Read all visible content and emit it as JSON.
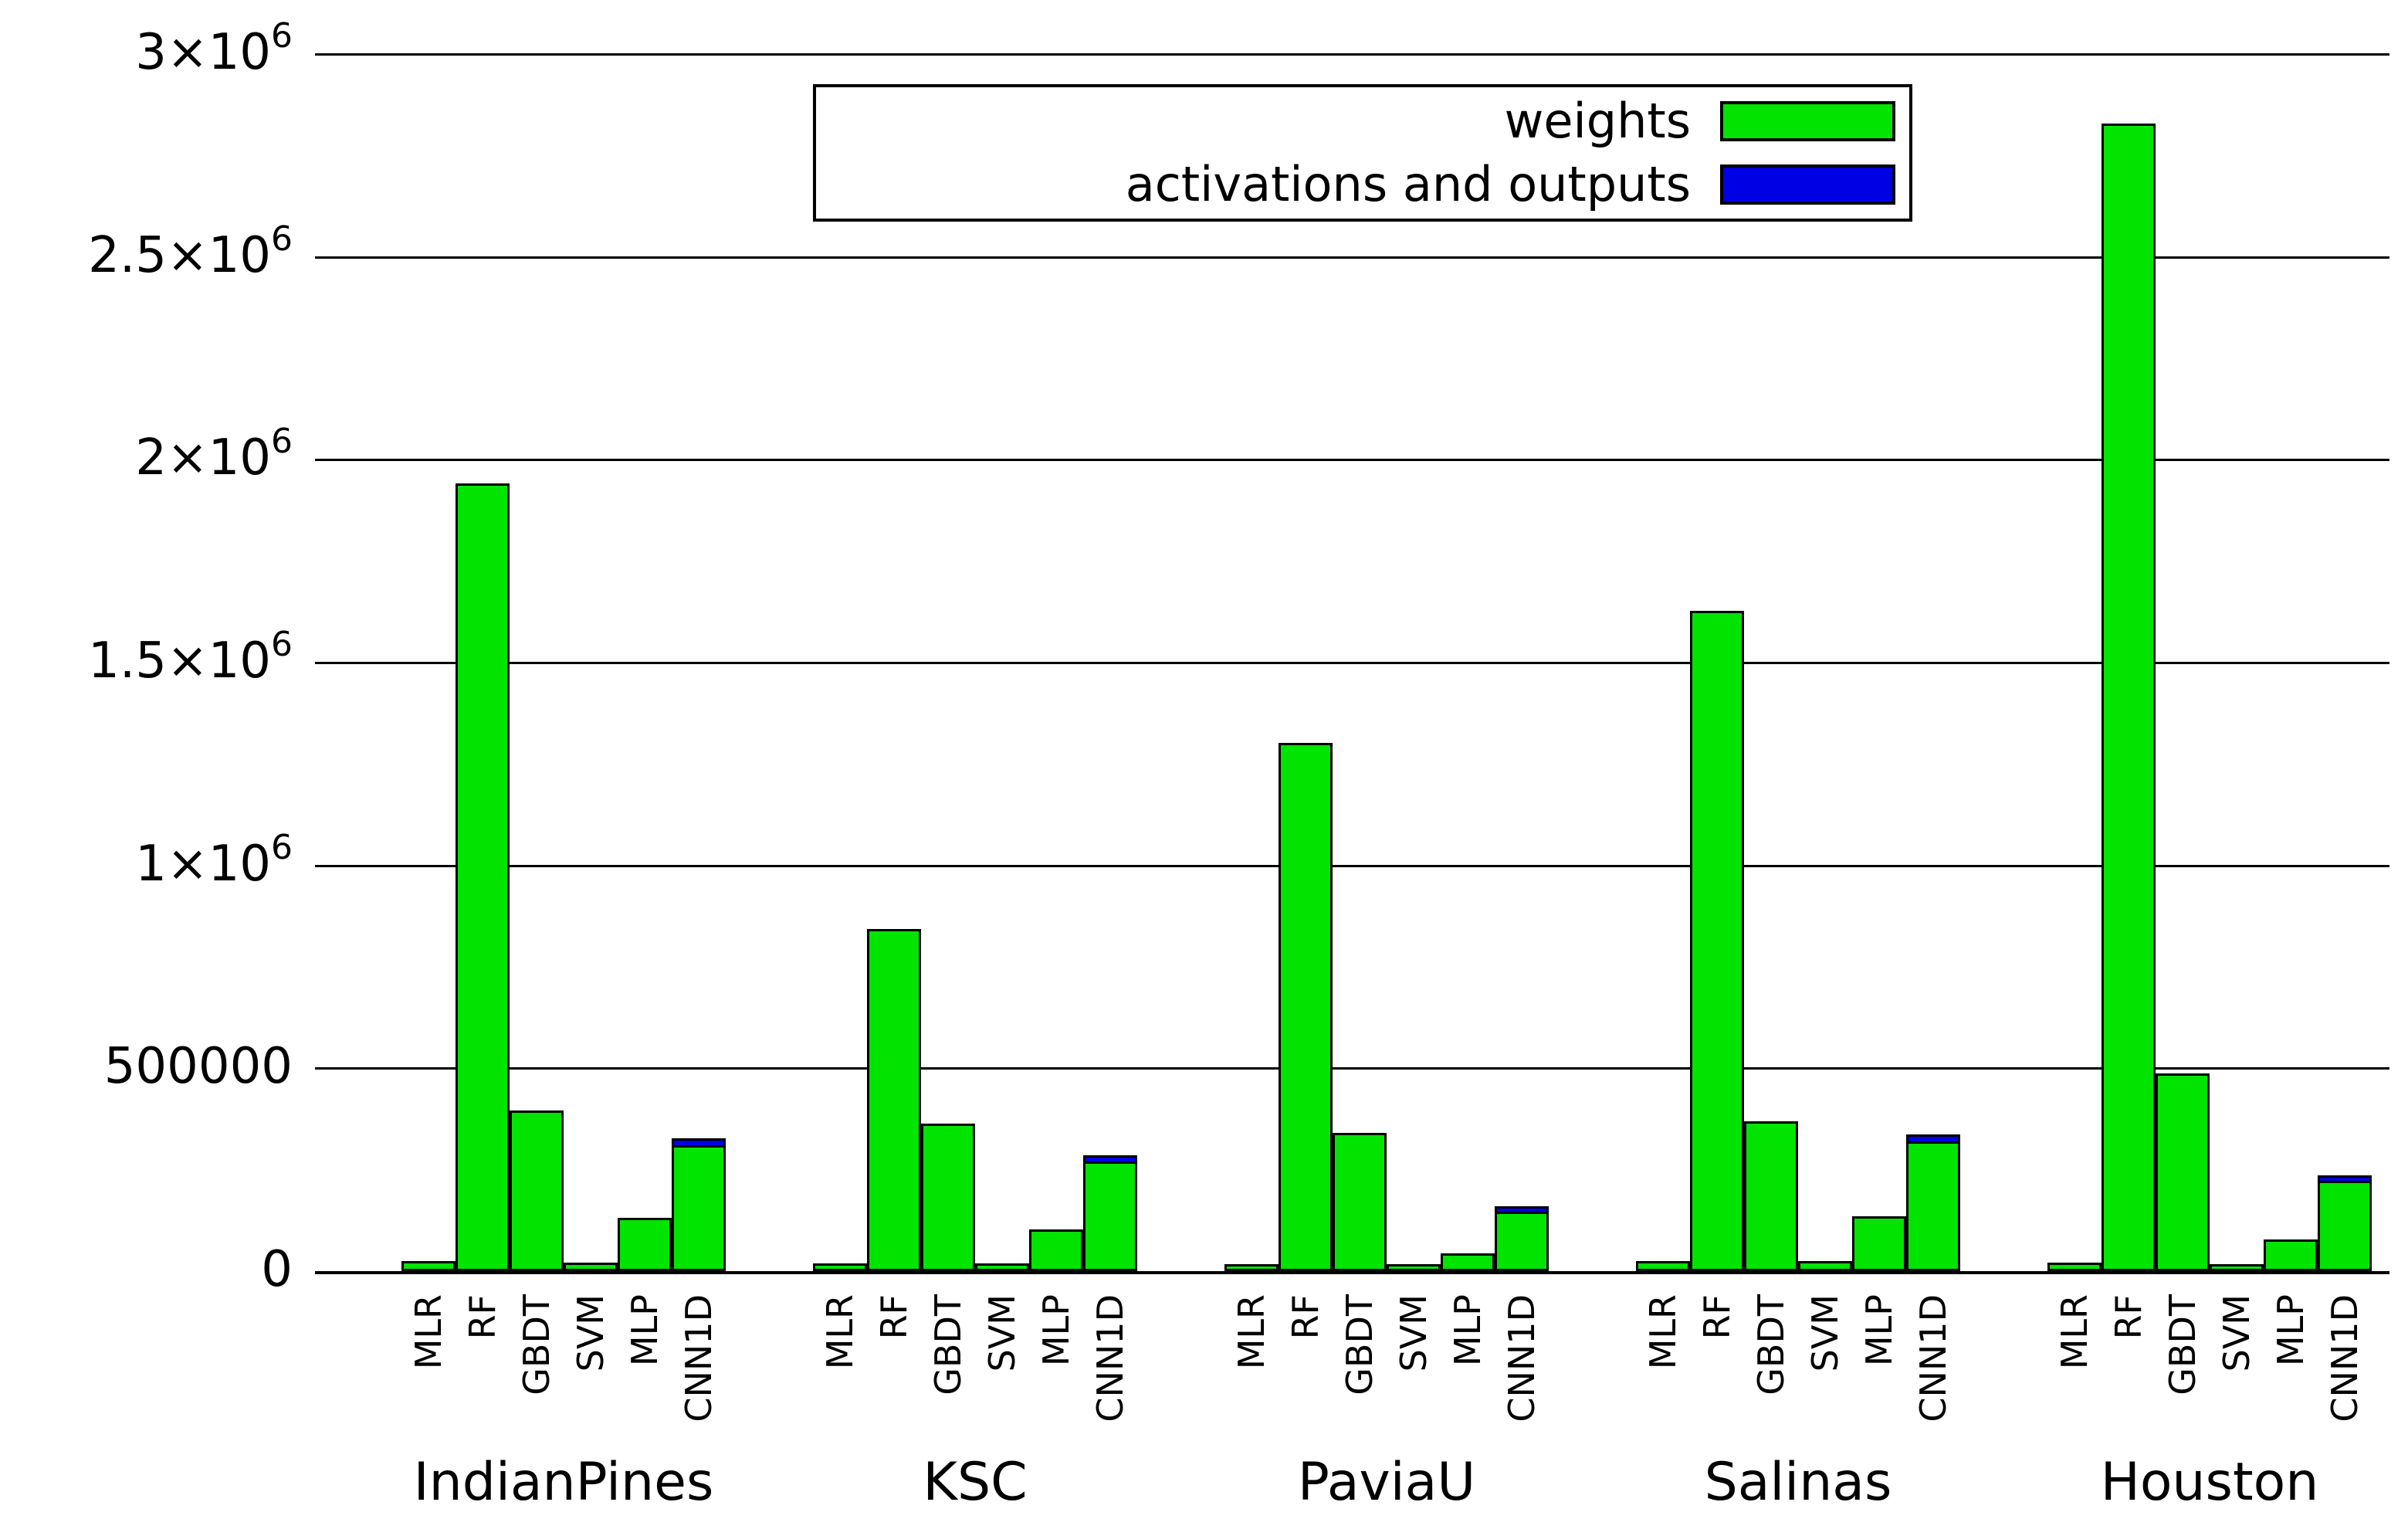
{
  "chart_data": {
    "type": "bar",
    "stacked": true,
    "title": "",
    "xlabel": "",
    "ylabel": "",
    "ylim": [
      0,
      3000000
    ],
    "grid": true,
    "legend_position": "top-center",
    "ytick_values": [
      0,
      500000,
      1000000,
      1500000,
      2000000,
      2500000,
      3000000
    ],
    "ytick_labels": [
      "0",
      "500000",
      "1×10^6",
      "1.5×10^6",
      "2×10^6",
      "2.5×10^6",
      "3×10^6"
    ],
    "groups": [
      "IndianPines",
      "KSC",
      "PaviaU",
      "Salinas",
      "Houston"
    ],
    "models": [
      "MLR",
      "RF",
      "GBDT",
      "SVM",
      "MLP",
      "CNN1D"
    ],
    "series": [
      {
        "name": "weights",
        "color": "#00e400",
        "values": {
          "IndianPines": [
            13000,
            1930000,
            385000,
            10000,
            120000,
            298000
          ],
          "KSC": [
            8000,
            832000,
            352000,
            7000,
            92000,
            258000
          ],
          "PaviaU": [
            4000,
            1290000,
            330000,
            2500,
            33000,
            135000
          ],
          "Salinas": [
            13000,
            1616000,
            358000,
            13000,
            124000,
            308000
          ],
          "Houston": [
            9000,
            2818000,
            476000,
            6500,
            66000,
            212000
          ]
        }
      },
      {
        "name": "activations and outputs",
        "color": "#0000e4",
        "values": {
          "IndianPines": [
            300,
            2000,
            800,
            300,
            2000,
            12000
          ],
          "KSC": [
            300,
            2000,
            800,
            300,
            2000,
            10000
          ],
          "PaviaU": [
            300,
            2000,
            800,
            300,
            2000,
            8000
          ],
          "Salinas": [
            300,
            2000,
            800,
            300,
            2000,
            12000
          ],
          "Houston": [
            300,
            2000,
            800,
            300,
            2000,
            8000
          ]
        }
      }
    ]
  }
}
